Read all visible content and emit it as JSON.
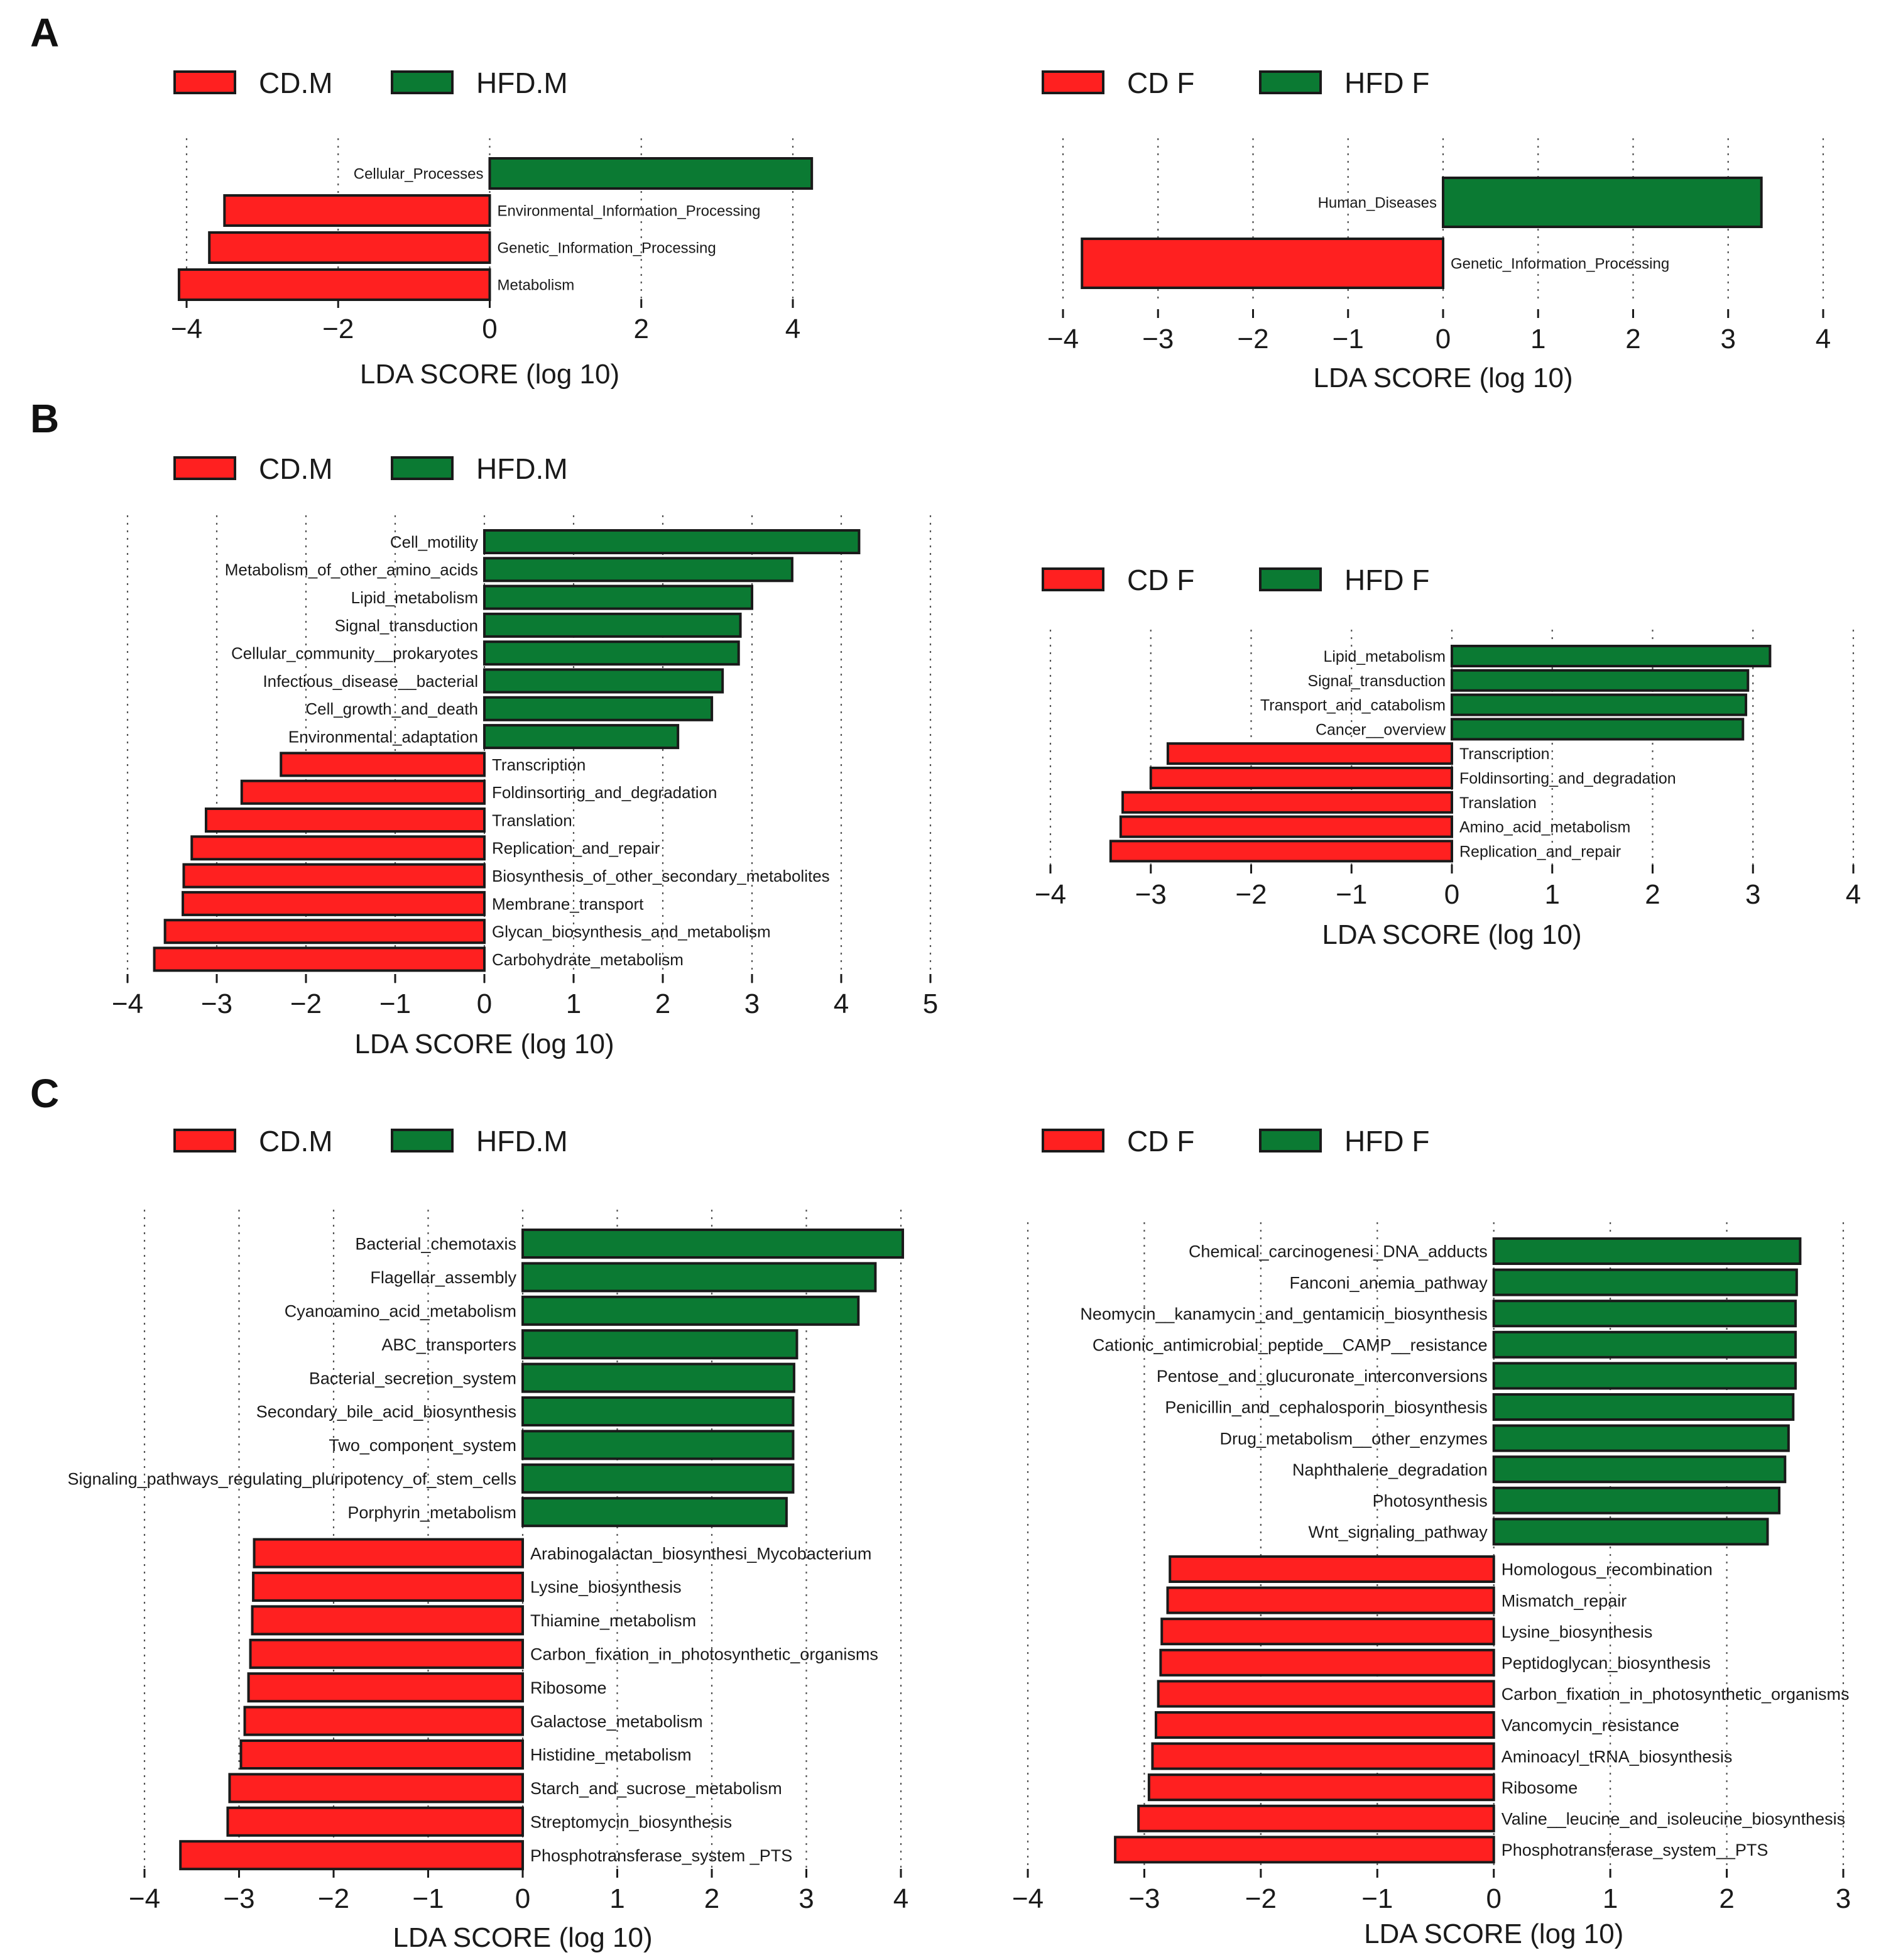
{
  "panel_letters": [
    "A",
    "B",
    "C"
  ],
  "colors": {
    "cd": "#ff2020",
    "hfd": "#0b7a33"
  },
  "chart_data": [
    {
      "type": "bar",
      "panel": "A",
      "title": "",
      "xlabel": "LDA SCORE (log 10)",
      "xlim": [
        -4,
        4
      ],
      "legend": [
        "CD.M",
        "HFD.M"
      ],
      "xticks": [
        -4,
        -2,
        0,
        2,
        4
      ],
      "categories": [
        "Cellular_Processes",
        "Environmental_Information_Processing",
        "Genetic_Information_Processing",
        "Metabolism"
      ],
      "values": [
        4.25,
        -3.5,
        -3.7,
        -4.1
      ]
    },
    {
      "type": "bar",
      "panel": "A",
      "title": "",
      "xlabel": "LDA SCORE (log 10)",
      "xlim": [
        -4,
        4
      ],
      "legend": [
        "CD F",
        "HFD F"
      ],
      "xticks": [
        -4,
        -3,
        -2,
        -1,
        0,
        1,
        2,
        3,
        4
      ],
      "categories": [
        "Human_Diseases",
        "Genetic_Information_Processing"
      ],
      "values": [
        3.35,
        -3.8
      ]
    },
    {
      "type": "bar",
      "panel": "B",
      "title": "",
      "xlabel": "LDA SCORE (log 10)",
      "xlim": [
        -4,
        5
      ],
      "legend": [
        "CD.M",
        "HFD.M"
      ],
      "xticks": [
        -4,
        -3,
        -2,
        -1,
        0,
        1,
        2,
        3,
        4,
        5
      ],
      "categories": [
        "Cell_motility",
        "Metabolism_of_other_amino_acids",
        "Lipid_metabolism",
        "Signal_transduction",
        "Cellular_community__prokaryotes",
        "Infectious_disease__bacterial",
        "Cell_growth_and_death",
        "Environmental_adaptation",
        "Transcription",
        "Foldinsorting_and_degradation",
        "Translation",
        "Replication_and_repair",
        "Biosynthesis_of_other_secondary_metabolites",
        "Membrane_transport",
        "Glycan_biosynthesis_and_metabolism",
        "Carbohydrate_metabolism"
      ],
      "values": [
        4.2,
        3.45,
        3.0,
        2.87,
        2.85,
        2.67,
        2.55,
        2.17,
        -2.28,
        -2.72,
        -3.12,
        -3.28,
        -3.37,
        -3.38,
        -3.58,
        -3.7
      ]
    },
    {
      "type": "bar",
      "panel": "B",
      "title": "",
      "xlabel": "LDA SCORE (log 10)",
      "xlim": [
        -4,
        4
      ],
      "legend": [
        "CD F",
        "HFD F"
      ],
      "xticks": [
        -4,
        -3,
        -2,
        -1,
        0,
        1,
        2,
        3,
        4
      ],
      "categories": [
        "Lipid_metabolism",
        "Signal_transduction",
        "Transport_and_catabolism",
        "Cancer__overview",
        "Transcription",
        "Foldinsorting_and_degradation",
        "Translation",
        "Amino_acid_metabolism",
        "Replication_and_repair"
      ],
      "values": [
        3.17,
        2.95,
        2.93,
        2.9,
        -2.83,
        -3.0,
        -3.28,
        -3.3,
        -3.4
      ]
    },
    {
      "type": "bar",
      "panel": "C",
      "title": "",
      "xlabel": "LDA SCORE (log 10)",
      "xlim": [
        -4,
        4
      ],
      "legend": [
        "CD.M",
        "HFD.M"
      ],
      "xticks": [
        -4,
        -3,
        -2,
        -1,
        0,
        1,
        2,
        3,
        4
      ],
      "categories": [
        "Bacterial_chemotaxis",
        "Flagellar_assembly",
        "Cyanoamino_acid_metabolism",
        "ABC_transporters",
        "Bacterial_secretion_system",
        "Secondary_bile_acid_biosynthesis",
        "Two_component_system",
        "Signaling_pathways_regulating_pluripotency_of_stem_cells",
        "Porphyrin_metabolism",
        "Arabinogalactan_biosynthesi_Mycobacterium",
        "Lysine_biosynthesis",
        "Thiamine_metabolism",
        "Carbon_fixation_in_photosynthetic_organisms",
        "Ribosome",
        "Galactose_metabolism",
        "Histidine_metabolism",
        "Starch_and_sucrose_metabolism",
        "Streptomycin_biosynthesis",
        "Phosphotransferase_system _PTS"
      ],
      "values": [
        4.02,
        3.73,
        3.55,
        2.9,
        2.87,
        2.86,
        2.86,
        2.86,
        2.79,
        -2.84,
        -2.85,
        -2.86,
        -2.88,
        -2.9,
        -2.94,
        -2.98,
        -3.1,
        -3.12,
        -3.62
      ]
    },
    {
      "type": "bar",
      "panel": "C",
      "title": "",
      "xlabel": "LDA SCORE (log 10)",
      "xlim": [
        -4,
        3
      ],
      "legend": [
        "CD F",
        "HFD F"
      ],
      "xticks": [
        -4,
        -3,
        -2,
        -1,
        0,
        1,
        2,
        3
      ],
      "categories": [
        "Chemical_carcinogenesi_DNA_adducts",
        "Fanconi_anemia_pathway",
        "Neomycin__kanamycin_and_gentamicin_biosynthesis",
        "Cationic_antimicrobial_peptide__CAMP__resistance",
        "Pentose_and_glucuronate_interconversions",
        "Penicillin_and_cephalosporin_biosynthesis",
        "Drug_metabolism__other_enzymes",
        "Naphthalene_degradation",
        "Photosynthesis",
        "Wnt_signaling_pathway",
        "Homologous_recombination",
        "Mismatch_repair",
        "Lysine_biosynthesis",
        "Peptidoglycan_biosynthesis",
        "Carbon_fixation_in_photosynthetic_organisms",
        "Vancomycin_resistance",
        "Aminoacyl_tRNA_biosynthesis",
        "Ribosome",
        "Valine__leucine_and_isoleucine_biosynthesis",
        "Phosphotransferase_system__PTS"
      ],
      "values": [
        2.63,
        2.6,
        2.59,
        2.59,
        2.59,
        2.57,
        2.53,
        2.5,
        2.45,
        2.35,
        -2.78,
        -2.8,
        -2.85,
        -2.86,
        -2.88,
        -2.9,
        -2.93,
        -2.96,
        -3.05,
        -3.25
      ]
    }
  ]
}
